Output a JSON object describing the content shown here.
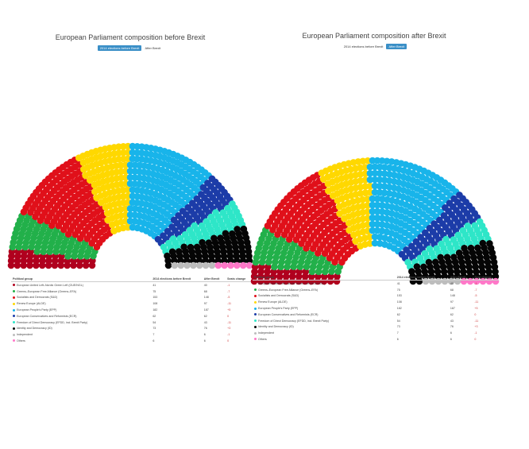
{
  "chart_data": [
    {
      "type": "parliament",
      "title": "European Parliament composition before Brexit",
      "toggle": [
        "2014 elections before Brexit",
        "After Brexit"
      ],
      "columns": [
        "Political group",
        "2014 elections before Brexit",
        "After Brexit",
        "Seats change"
      ],
      "groups": [
        {
          "name": "European United Left–Nordic Green Left (GUE/NGL)",
          "seats": 41,
          "after": 40,
          "change": "-1",
          "color": "#b0001e"
        },
        {
          "name": "Greens–European Free Alliance (Greens–EFA)",
          "seats": 75,
          "after": 68,
          "change": "-7",
          "color": "#22b04a"
        },
        {
          "name": "Socialists and Democrats (S&D)",
          "seats": 153,
          "after": 148,
          "change": "-5",
          "color": "#e0101a"
        },
        {
          "name": "Renew Europe (ALDE)",
          "seats": 108,
          "after": 97,
          "change": "-11",
          "color": "#ffd800"
        },
        {
          "name": "European People's Party (EPP)",
          "seats": 182,
          "after": 187,
          "change": "+5",
          "color": "#18b4ea"
        },
        {
          "name": "European Conservatives and Reformists (ECR)",
          "seats": 62,
          "after": 62,
          "change": "0",
          "color": "#1c3ca8"
        },
        {
          "name": "Freedom of Direct Democracy (EFDD, incl. Brexit Party)",
          "seats": 54,
          "after": 43,
          "change": "-11",
          "color": "#2ee6c8"
        },
        {
          "name": "Identity and Democracy (ID)",
          "seats": 73,
          "after": 76,
          "change": "+3",
          "color": "#050505"
        },
        {
          "name": "Independent",
          "seats": 7,
          "after": 6,
          "change": "-1",
          "color": "#bdbdbd"
        },
        {
          "name": "Others",
          "seats": 6,
          "after": 6,
          "change": "0",
          "color": "#ff78c8"
        }
      ]
    },
    {
      "type": "parliament",
      "title": "European Parliament composition after Brexit",
      "toggle": [
        "2014 elections before Brexit",
        "After Brexit"
      ],
      "columns": [
        "Political group",
        "2014 elections before Brexit",
        "After Brexit",
        "Seat change"
      ],
      "groups": [
        {
          "name": "European United Left–Nordic Green Left (GUE/NGL)",
          "seats": 40,
          "before": 41,
          "change": "-1",
          "color": "#b0001e"
        },
        {
          "name": "Greens–European Free Alliance (Greens–EFA)",
          "seats": 68,
          "before": 75,
          "change": "-7",
          "color": "#22b04a"
        },
        {
          "name": "Socialists and Democrats (S&D)",
          "seats": 148,
          "before": 153,
          "change": "-5",
          "color": "#e0101a"
        },
        {
          "name": "Renew Europe (ALDE)",
          "seats": 97,
          "before": 108,
          "change": "-11",
          "color": "#ffd800"
        },
        {
          "name": "European People's Party (EPP)",
          "seats": 187,
          "before": 182,
          "change": "+5",
          "color": "#18b4ea"
        },
        {
          "name": "European Conservatives and Reformists (ECR)",
          "seats": 62,
          "before": 62,
          "change": "0",
          "color": "#1c3ca8"
        },
        {
          "name": "Freedom of Direct Democracy (EFDD, incl. Brexit Party)",
          "seats": 43,
          "before": 54,
          "change": "-11",
          "color": "#2ee6c8"
        },
        {
          "name": "Identity and Democracy (ID)",
          "seats": 76,
          "before": 73,
          "change": "+3",
          "color": "#050505"
        },
        {
          "name": "Independent",
          "seats": 6,
          "before": 7,
          "change": "-1",
          "color": "#bdbdbd"
        },
        {
          "name": "Others",
          "seats": 6,
          "before": 6,
          "change": "0",
          "color": "#ff78c8"
        }
      ]
    }
  ]
}
